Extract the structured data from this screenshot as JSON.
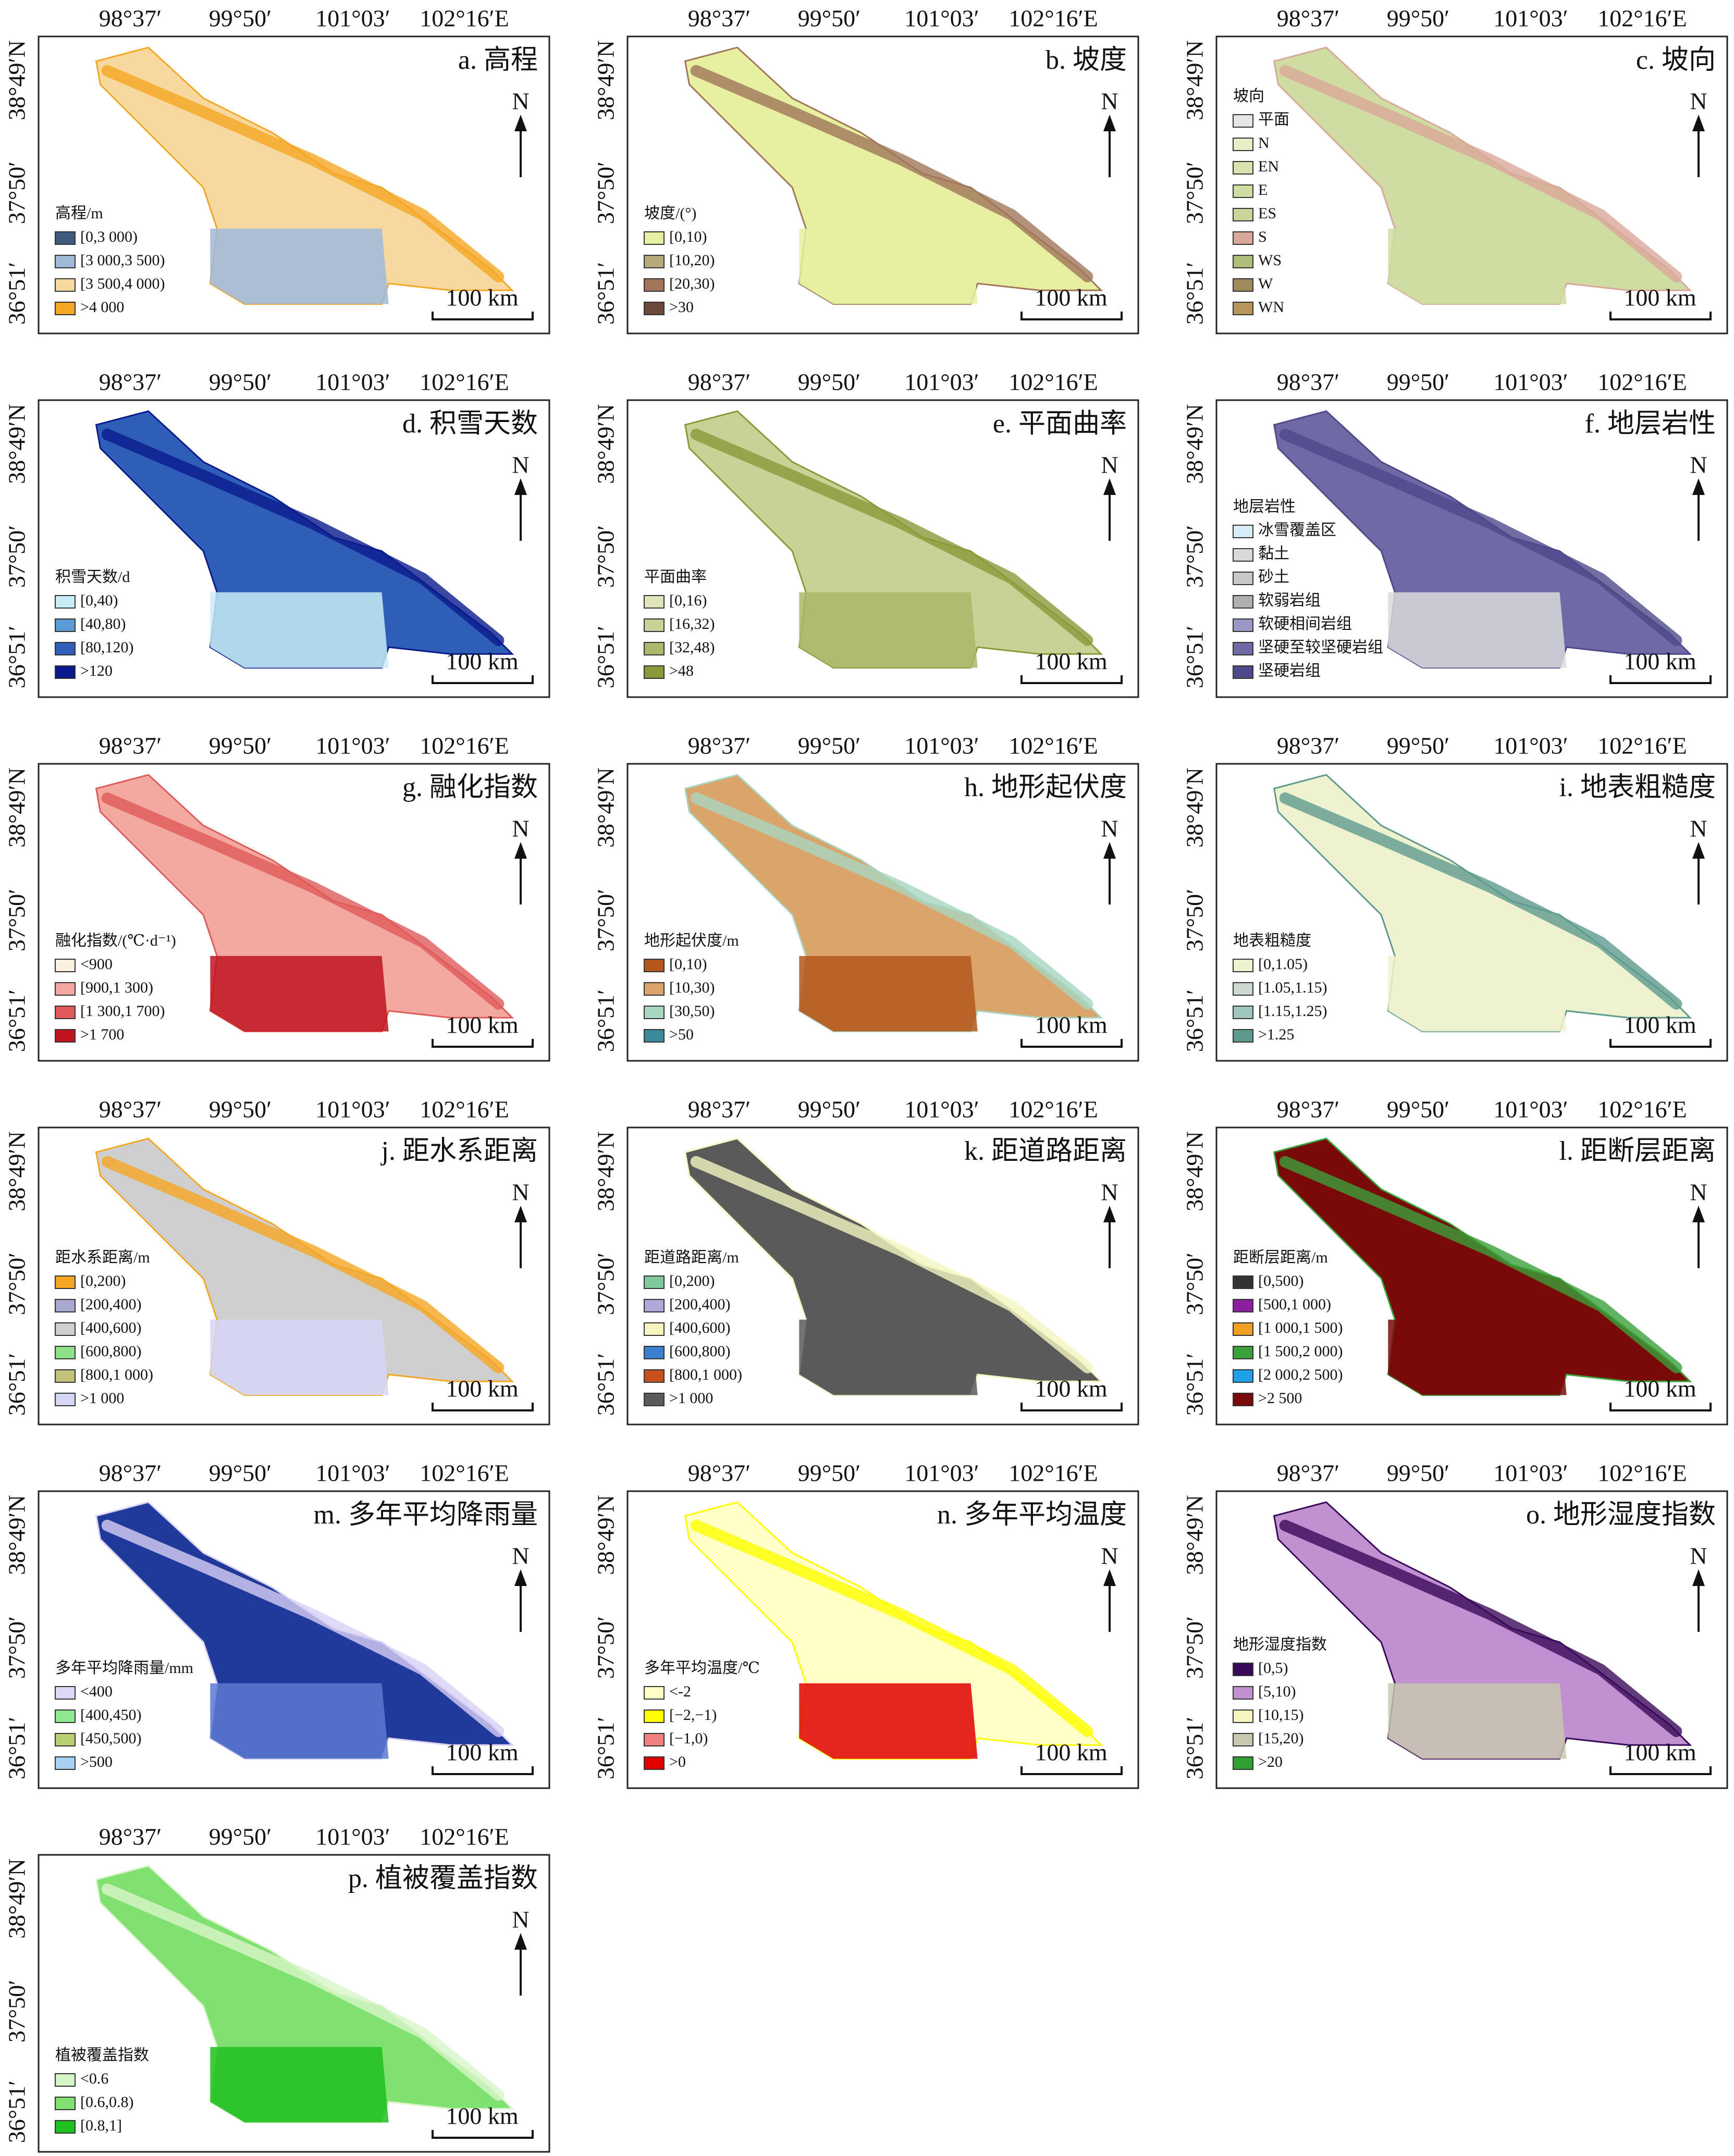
{
  "axes": {
    "lon_ticks": [
      "98°37′",
      "99°50′",
      "101°03′",
      "102°16′E"
    ],
    "lat_ticks": [
      "38°49′N",
      "37°50′",
      "36°51′"
    ]
  },
  "north": "N",
  "scale_bar": "100 km",
  "panels": [
    {
      "title": "a. 高程",
      "legend_title": "高程/m",
      "items": [
        {
          "label": "[0,3 000)",
          "color": "#3f5b7d"
        },
        {
          "label": "[3 000,3 500)",
          "color": "#9fb9d9"
        },
        {
          "label": "[3 500,4 000)",
          "color": "#f7d9a0"
        },
        {
          "label": ">4 000",
          "color": "#f5a623"
        }
      ]
    },
    {
      "title": "b. 坡度",
      "legend_title": "坡度/(°)",
      "items": [
        {
          "label": "[0,10)",
          "color": "#e6f0a0"
        },
        {
          "label": "[10,20)",
          "color": "#b8a97a"
        },
        {
          "label": "[20,30)",
          "color": "#a0755a"
        },
        {
          "label": ">30",
          "color": "#6b4a3a"
        }
      ]
    },
    {
      "title": "c. 坡向",
      "legend_title": "坡向",
      "items": [
        {
          "label": "平面",
          "color": "#e6e6e6"
        },
        {
          "label": "N",
          "color": "#e7eec3"
        },
        {
          "label": "EN",
          "color": "#d9e3b0"
        },
        {
          "label": "E",
          "color": "#cfdca2"
        },
        {
          "label": "ES",
          "color": "#c9d59a"
        },
        {
          "label": "S",
          "color": "#d9a89a"
        },
        {
          "label": "WS",
          "color": "#aebf7a"
        },
        {
          "label": "W",
          "color": "#a08a5c"
        },
        {
          "label": "WN",
          "color": "#b8955a"
        }
      ]
    },
    {
      "title": "d. 积雪天数",
      "legend_title": "积雪天数/d",
      "items": [
        {
          "label": "[0,40)",
          "color": "#c8ecf5"
        },
        {
          "label": "[40,80)",
          "color": "#5b9bd5"
        },
        {
          "label": "[80,120)",
          "color": "#2e5eb8"
        },
        {
          "label": ">120",
          "color": "#0a1a8c"
        }
      ]
    },
    {
      "title": "e. 平面曲率",
      "legend_title": "平面曲率",
      "items": [
        {
          "label": "[0,16)",
          "color": "#e0e4b8"
        },
        {
          "label": "[16,32)",
          "color": "#c8d196"
        },
        {
          "label": "[32,48)",
          "color": "#a9b86a"
        },
        {
          "label": ">48",
          "color": "#8a9a3a"
        }
      ]
    },
    {
      "title": "f. 地层岩性",
      "legend_title": "地层岩性",
      "items": [
        {
          "label": "冰雪覆盖区",
          "color": "#d6ecf7"
        },
        {
          "label": "黏土",
          "color": "#d9d9d9"
        },
        {
          "label": "砂土",
          "color": "#c8c8c8"
        },
        {
          "label": "软弱岩组",
          "color": "#b0b0b0"
        },
        {
          "label": "软硬相间岩组",
          "color": "#9a98c8"
        },
        {
          "label": "坚硬至较坚硬岩组",
          "color": "#6f6aa6"
        },
        {
          "label": "坚硬岩组",
          "color": "#4e4a8a"
        }
      ]
    },
    {
      "title": "g. 融化指数",
      "legend_title": "融化指数/(℃·d⁻¹)",
      "items": [
        {
          "label": "<900",
          "color": "#fdf0e0"
        },
        {
          "label": "[900,1 300)",
          "color": "#f4a9a0"
        },
        {
          "label": "[1 300,1 700)",
          "color": "#e05a5a"
        },
        {
          "label": ">1 700",
          "color": "#c0141e"
        }
      ]
    },
    {
      "title": "h. 地形起伏度",
      "legend_title": "地形起伏度/m",
      "items": [
        {
          "label": "[0,10)",
          "color": "#b3571c"
        },
        {
          "label": "[10,30)",
          "color": "#d9a56a"
        },
        {
          "label": "[30,50)",
          "color": "#a9d6c0"
        },
        {
          "label": ">50",
          "color": "#3a8a9a"
        }
      ]
    },
    {
      "title": "i. 地表粗糙度",
      "legend_title": "地表粗糙度",
      "items": [
        {
          "label": "[0,1.05)",
          "color": "#eef2cf"
        },
        {
          "label": "[1.05,1.15)",
          "color": "#cfd8d0"
        },
        {
          "label": "[1.15,1.25)",
          "color": "#9fc7c0"
        },
        {
          "label": ">1.25",
          "color": "#5f9a8f"
        }
      ]
    },
    {
      "title": "j. 距水系距离",
      "legend_title": "距水系距离/m",
      "items": [
        {
          "label": "[0,200)",
          "color": "#f5a623"
        },
        {
          "label": "[200,400)",
          "color": "#a9a8d0"
        },
        {
          "label": "[400,600)",
          "color": "#cfcfcf"
        },
        {
          "label": "[600,800)",
          "color": "#8fe08a"
        },
        {
          "label": "[800,1 000)",
          "color": "#c2c27a"
        },
        {
          "label": ">1 000",
          "color": "#d6d6f5"
        }
      ]
    },
    {
      "title": "k. 距道路距离",
      "legend_title": "距道路距离/m",
      "items": [
        {
          "label": "[0,200)",
          "color": "#7fc99a"
        },
        {
          "label": "[200,400)",
          "color": "#b0a8d8"
        },
        {
          "label": "[400,600)",
          "color": "#f5f5c0"
        },
        {
          "label": "[600,800)",
          "color": "#3a7fd0"
        },
        {
          "label": "[800,1 000)",
          "color": "#c8501e"
        },
        {
          "label": ">1 000",
          "color": "#5a5a5a"
        }
      ]
    },
    {
      "title": "l. 距断层距离",
      "legend_title": "距断层距离/m",
      "items": [
        {
          "label": "[0,500)",
          "color": "#333333"
        },
        {
          "label": "[500,1 000)",
          "color": "#8a1fa0"
        },
        {
          "label": "[1 000,1 500)",
          "color": "#f0a020"
        },
        {
          "label": "[1 500,2 000)",
          "color": "#3aa03a"
        },
        {
          "label": "[2 000,2 500)",
          "color": "#20a0e8"
        },
        {
          "label": ">2 500",
          "color": "#7a0a0a"
        }
      ]
    },
    {
      "title": "m. 多年平均降雨量",
      "legend_title": "多年平均降雨量/mm",
      "items": [
        {
          "label": "<400",
          "color": "#ddd8f5"
        },
        {
          "label": "[400,450)",
          "color": "#90e890"
        },
        {
          "label": "[450,500)",
          "color": "#b8d070"
        },
        {
          "label": ">500",
          "color": "#a8d0f0"
        }
      ]
    },
    {
      "title": "n. 多年平均温度",
      "legend_title": "多年平均温度/℃",
      "items": [
        {
          "label": "<-2",
          "color": "#ffffc8"
        },
        {
          "label": "[−2,−1)",
          "color": "#ffff00"
        },
        {
          "label": "[−1,0)",
          "color": "#f08080"
        },
        {
          "label": ">0",
          "color": "#e00000"
        }
      ]
    },
    {
      "title": "o. 地形湿度指数",
      "legend_title": "地形湿度指数",
      "items": [
        {
          "label": "[0,5)",
          "color": "#3a0a5a"
        },
        {
          "label": "[5,10)",
          "color": "#c090d0"
        },
        {
          "label": "[10,15)",
          "color": "#f5f5c0"
        },
        {
          "label": "[15,20)",
          "color": "#c8c8b0"
        },
        {
          "label": ">20",
          "color": "#30a030"
        }
      ]
    },
    {
      "title": "p. 植被覆盖指数",
      "legend_title": "植被覆盖指数",
      "items": [
        {
          "label": "<0.6",
          "color": "#d8f5c8"
        },
        {
          "label": "[0.6,0.8)",
          "color": "#80e070"
        },
        {
          "label": "[0.8,1]",
          "color": "#20c020"
        }
      ]
    }
  ]
}
